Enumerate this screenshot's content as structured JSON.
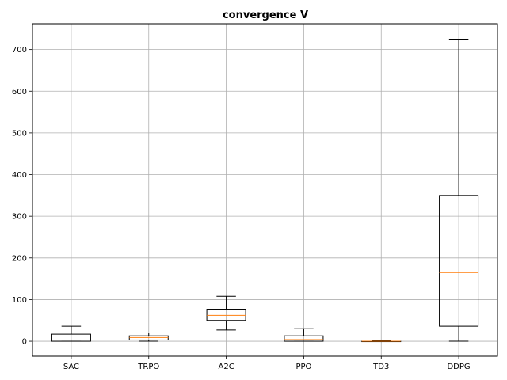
{
  "chart_data": {
    "type": "boxplot",
    "title": "convergence V",
    "xlabel": "",
    "ylabel": "",
    "ylim": [
      -36,
      762
    ],
    "yticks": [
      0,
      100,
      200,
      300,
      400,
      500,
      600,
      700
    ],
    "grid": true,
    "categories": [
      "SAC",
      "TRPO",
      "A2C",
      "PPO",
      "TD3",
      "DDPG"
    ],
    "boxes": [
      {
        "label": "SAC",
        "whisker_low": 0,
        "q1": 0,
        "median": 3,
        "q3": 17,
        "whisker_high": 36
      },
      {
        "label": "TRPO",
        "whisker_low": 0,
        "q1": 3,
        "median": 9,
        "q3": 13,
        "whisker_high": 20
      },
      {
        "label": "A2C",
        "whisker_low": 27,
        "q1": 50,
        "median": 62,
        "q3": 77,
        "whisker_high": 108
      },
      {
        "label": "PPO",
        "whisker_low": 0,
        "q1": 0,
        "median": 4,
        "q3": 13,
        "whisker_high": 30
      },
      {
        "label": "TD3",
        "whisker_low": 0,
        "q1": 0,
        "median": 0,
        "q3": 0,
        "whisker_high": 1
      },
      {
        "label": "DDPG",
        "whisker_low": 0,
        "q1": 36,
        "median": 165,
        "q3": 350,
        "whisker_high": 725
      }
    ],
    "colors": {
      "box": "#000000",
      "median": "#ff7f0e",
      "grid": "#b0b0b0"
    }
  }
}
